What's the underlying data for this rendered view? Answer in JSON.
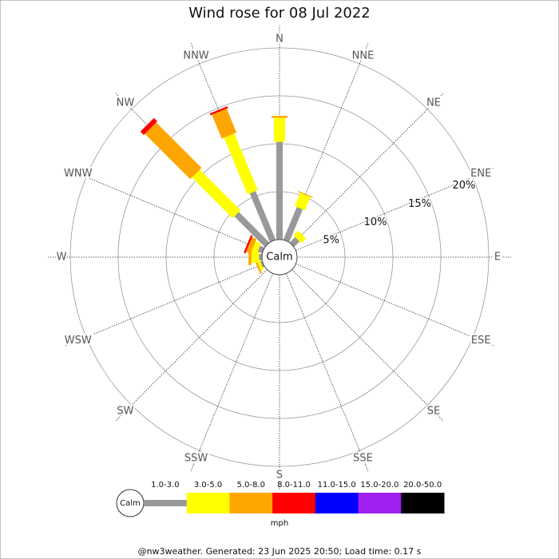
{
  "chart_data": {
    "type": "wind_rose",
    "title": "Wind rose for 08 Jul 2022",
    "directions": [
      "N",
      "NNE",
      "NE",
      "ENE",
      "E",
      "ESE",
      "SE",
      "SSE",
      "S",
      "SSW",
      "SW",
      "WSW",
      "W",
      "WNW",
      "NW",
      "NNW"
    ],
    "series": [
      {
        "name": "1.0-3.0",
        "color": "#999999",
        "values": [
          10.2,
          3.7,
          0.8,
          0,
          0,
          0,
          0,
          0,
          0,
          0,
          0,
          0.2,
          0.3,
          0.5,
          4.5,
          5.5
        ]
      },
      {
        "name": "3.0-5.0",
        "color": "#ffff00",
        "values": [
          2.5,
          1.5,
          0.7,
          0,
          0,
          0,
          0,
          0,
          0,
          0,
          0,
          0.3,
          0.8,
          0.6,
          6.0,
          6.4
        ]
      },
      {
        "name": "5.0-8.0",
        "color": "#ffa500",
        "values": [
          0.2,
          0.1,
          0,
          0,
          0,
          0,
          0,
          0,
          0,
          0,
          0,
          0.2,
          0.3,
          0.5,
          6.7,
          2.7
        ]
      },
      {
        "name": "8.0-11.0",
        "color": "#ff0000",
        "values": [
          0,
          0,
          0,
          0,
          0,
          0,
          0,
          0,
          0,
          0,
          0,
          0,
          0,
          0.2,
          0.5,
          0.2
        ]
      },
      {
        "name": "11.0-15.0",
        "color": "#0000ff",
        "values": [
          0,
          0,
          0,
          0,
          0,
          0,
          0,
          0,
          0,
          0,
          0,
          0,
          0,
          0,
          0,
          0
        ]
      },
      {
        "name": "15.0-20.0",
        "color": "#a020f0",
        "values": [
          0,
          0,
          0,
          0,
          0,
          0,
          0,
          0,
          0,
          0,
          0,
          0,
          0,
          0,
          0,
          0
        ]
      },
      {
        "name": "20.0-50.0",
        "color": "#000000",
        "values": [
          0,
          0,
          0,
          0,
          0,
          0,
          0,
          0,
          0,
          0,
          0,
          0,
          0,
          0,
          0,
          0
        ]
      }
    ],
    "rlim": [
      0,
      20
    ],
    "rticks": [
      {
        "value": 5,
        "label": "5%"
      },
      {
        "value": 10,
        "label": "10%"
      },
      {
        "value": 15,
        "label": "15%"
      },
      {
        "value": 20,
        "label": "20%"
      }
    ],
    "calm_label": "Calm",
    "unit": "mph",
    "footer": "@nw3weather.  Generated: 23 Jun 2025 20:50; Load time: 0.17 s"
  }
}
